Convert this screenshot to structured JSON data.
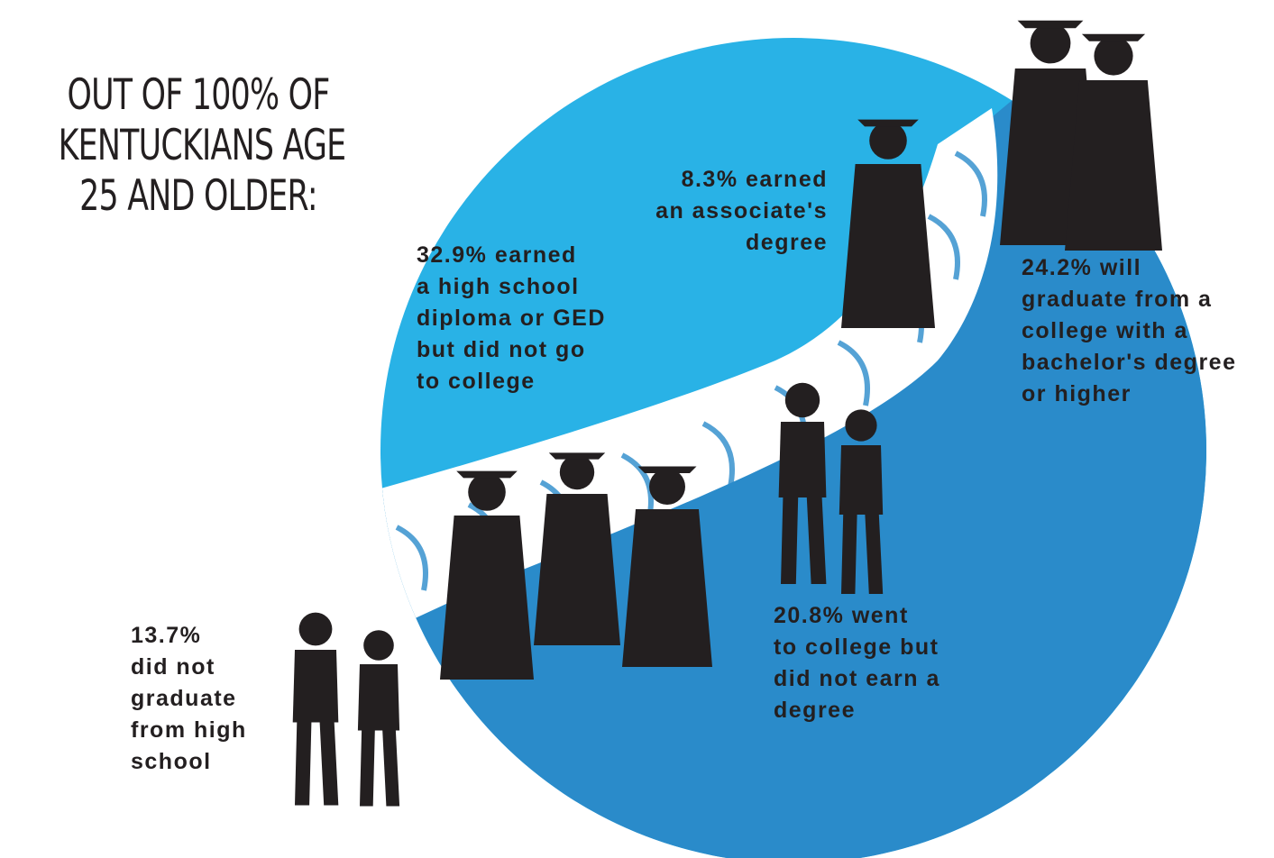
{
  "headline": [
    "OUT OF 100% OF",
    "KENTUCKIANS AGE",
    "25 AND OLDER:"
  ],
  "labels": {
    "no_hs": [
      "13.7%",
      "did not",
      "graduate",
      "from high",
      "school"
    ],
    "hs": [
      "32.9% earned",
      "a high school",
      "diploma or GED",
      "but did not go",
      "to college"
    ],
    "associate": [
      "8.3% earned",
      "an associate's",
      "degree"
    ],
    "some_college": [
      "20.8% went",
      "to college but",
      "did not earn a",
      "degree"
    ],
    "bachelor": [
      "24.2% will",
      "graduate from a",
      "college with a",
      "bachelor's degree",
      "or higher"
    ]
  },
  "colors": {
    "light_blue": "#29b2e6",
    "dark_blue": "#2a8bca",
    "path_white": "#ffffff",
    "silhouette": "#231f20"
  },
  "chart_data": {
    "type": "pie",
    "title": "OUT OF 100% OF KENTUCKIANS AGE 25 AND OLDER:",
    "categories": [
      "did not graduate from high school",
      "earned a high school diploma or GED but did not go to college",
      "earned an associate's degree",
      "went to college but did not earn a degree",
      "will graduate from a college with a bachelor's degree or higher"
    ],
    "values": [
      13.7,
      32.9,
      8.3,
      20.8,
      24.2
    ],
    "unit": "%"
  }
}
